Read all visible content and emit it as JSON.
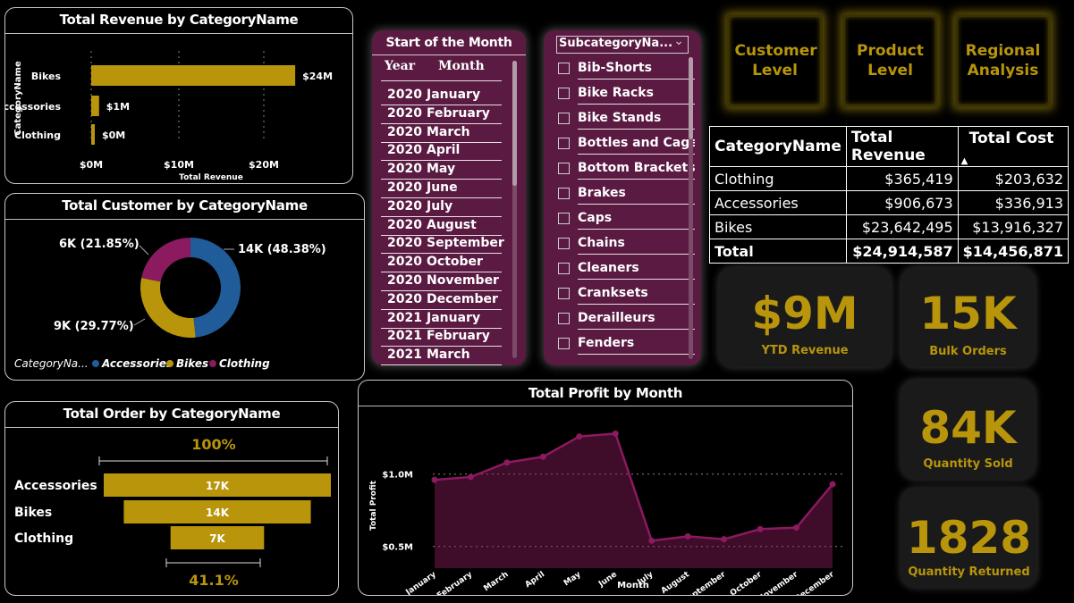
{
  "revenue_chart": {
    "title": "Total Revenue by CategoryName",
    "ylabel": "CategoryName",
    "xlabel": "Total Revenue",
    "ticks": [
      "$0M",
      "$10M",
      "$20M"
    ],
    "color": "#b8950b",
    "categories": [
      "Bikes",
      "Accessories",
      "Clothing"
    ],
    "labels": [
      "$24M",
      "$1M",
      "$0M"
    ]
  },
  "customer_chart": {
    "title": "Total Customer by CategoryName",
    "legend_title": "CategoryNa...",
    "legend": [
      "Accessories",
      "Bikes",
      "Clothing"
    ],
    "colors": [
      "#1f5c99",
      "#b8950b",
      "#8b1a5e"
    ],
    "labels": [
      "14K (48.38%)",
      "9K (29.77%)",
      "6K (21.85%)"
    ]
  },
  "order_chart": {
    "title": "Total Order by CategoryName",
    "top_pct": "100%",
    "bottom_pct": "41.1%",
    "categories": [
      "Accessories",
      "Bikes",
      "Clothing"
    ],
    "labels": [
      "17K",
      "14K",
      "7K"
    ],
    "color": "#b8950b"
  },
  "month_slicer": {
    "title": "Start of the Month",
    "col_year": "Year",
    "col_month": "Month",
    "rows": [
      {
        "year": "2020",
        "month": "January"
      },
      {
        "year": "2020",
        "month": "February"
      },
      {
        "year": "2020",
        "month": "March"
      },
      {
        "year": "2020",
        "month": "April"
      },
      {
        "year": "2020",
        "month": "May"
      },
      {
        "year": "2020",
        "month": "June"
      },
      {
        "year": "2020",
        "month": "July"
      },
      {
        "year": "2020",
        "month": "August"
      },
      {
        "year": "2020",
        "month": "September"
      },
      {
        "year": "2020",
        "month": "October"
      },
      {
        "year": "2020",
        "month": "November"
      },
      {
        "year": "2020",
        "month": "December"
      },
      {
        "year": "2021",
        "month": "January"
      },
      {
        "year": "2021",
        "month": "February"
      },
      {
        "year": "2021",
        "month": "March"
      }
    ]
  },
  "subcategory_slicer": {
    "title": "SubcategoryNa...",
    "items": [
      "Bib-Shorts",
      "Bike Racks",
      "Bike Stands",
      "Bottles and Cages",
      "Bottom Brackets",
      "Brakes",
      "Caps",
      "Chains",
      "Cleaners",
      "Cranksets",
      "Derailleurs",
      "Fenders"
    ]
  },
  "nav": {
    "customer": "Customer Level",
    "product": "Product Level",
    "regional": "Regional Analysis"
  },
  "table": {
    "headers": [
      "CategoryName",
      "Total Revenue",
      "Total Cost"
    ],
    "rows": [
      [
        "Clothing",
        "$365,419",
        "$203,632"
      ],
      [
        "Accessories",
        "$906,673",
        "$336,913"
      ],
      [
        "Bikes",
        "$23,642,495",
        "$13,916,327"
      ]
    ],
    "total": [
      "Total",
      "$24,914,587",
      "$14,456,871"
    ]
  },
  "kpis": {
    "ytd_revenue": {
      "value": "$9M",
      "label": "YTD Revenue"
    },
    "bulk_orders": {
      "value": "15K",
      "label": "Bulk Orders"
    },
    "quantity_sold": {
      "value": "84K",
      "label": "Quantity Sold"
    },
    "quantity_returned": {
      "value": "1828",
      "label": "Quantity Returned"
    }
  },
  "chart_data": [
    {
      "type": "bar",
      "title": "Total Revenue by CategoryName",
      "xlabel": "Total Revenue",
      "ylabel": "CategoryName",
      "categories": [
        "Bikes",
        "Accessories",
        "Clothing"
      ],
      "values": [
        23.64,
        0.91,
        0.37
      ],
      "unit": "$M",
      "xlim": [
        0,
        25
      ]
    },
    {
      "type": "pie",
      "title": "Total Customer by CategoryName",
      "categories": [
        "Accessories",
        "Bikes",
        "Clothing"
      ],
      "values": [
        48.38,
        29.77,
        21.85
      ]
    },
    {
      "type": "bar",
      "title": "Total Order by CategoryName",
      "categories": [
        "Accessories",
        "Bikes",
        "Clothing"
      ],
      "values": [
        17,
        14,
        7
      ],
      "unit": "K"
    },
    {
      "type": "area",
      "title": "Total Profit by Month",
      "xlabel": "Month",
      "ylabel": "Total Profit",
      "categories": [
        "January",
        "February",
        "March",
        "April",
        "May",
        "June",
        "July",
        "August",
        "September",
        "October",
        "November",
        "December"
      ],
      "values": [
        0.96,
        0.98,
        1.08,
        1.12,
        1.26,
        1.28,
        0.54,
        0.57,
        0.55,
        0.62,
        0.63,
        0.93
      ],
      "unit": "$M",
      "ylim": [
        0.35,
        1.35
      ],
      "yticks": [
        "$1.0M",
        "$0.5M"
      ],
      "color": "#8b1a5e"
    }
  ]
}
